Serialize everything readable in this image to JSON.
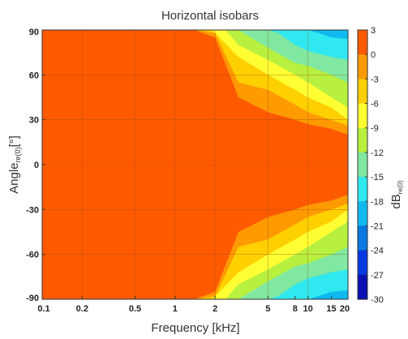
{
  "chart_data": {
    "type": "heatmap",
    "title": "Horizontal isobars",
    "xlabel": "Frequency [kHz]",
    "ylabel": {
      "main": "Angle",
      "sub": "re(0)",
      "unit": "[°]"
    },
    "colorbar_label": {
      "main": "dB",
      "sub": "re(0)"
    },
    "x_scale": "log",
    "xlim": [
      0.1,
      20
    ],
    "ylim": [
      -90,
      90
    ],
    "x_ticks": [
      0.1,
      0.2,
      0.5,
      1,
      2,
      5,
      8,
      10,
      15,
      20
    ],
    "x_tick_labels": [
      "0.1",
      "0.2",
      "0.5",
      "1",
      "2",
      "5",
      "8",
      "10",
      "15",
      "20"
    ],
    "y_ticks": [
      90,
      60,
      30,
      0,
      -30,
      -60,
      -90
    ],
    "y_tick_labels": [
      "90",
      "60",
      "30",
      "0",
      "-30",
      "-60",
      "-90"
    ],
    "colorbar_levels": [
      3,
      0,
      -3,
      -6,
      -9,
      -12,
      -15,
      -18,
      -21,
      -24,
      -27,
      -30
    ],
    "colorbar_tick_labels": [
      "3",
      "0",
      "-3",
      "-6",
      "-9",
      "-12",
      "-15",
      "-18",
      "-21",
      "-24",
      "-27",
      "-30"
    ],
    "colorbar_colors": [
      "#ff5a00",
      "#ff5a00",
      "#ff9a00",
      "#ffd000",
      "#ffff33",
      "#b8f040",
      "#80e8a0",
      "#30e8f0",
      "#10b8f0",
      "#0a78e0",
      "#0838e0",
      "#0a10b0"
    ],
    "grid": true,
    "grid_lines": {
      "x": [
        0.2,
        0.5,
        1,
        2,
        5,
        10
      ],
      "y": [
        60,
        30,
        0,
        -30,
        -60
      ]
    },
    "colors": {
      "dominant": "#ff5a00",
      "band_minus3": "#ff9a00",
      "band_minus6": "#ffd000",
      "band_minus9": "#ffff33",
      "band_minus12": "#b8f040",
      "band_minus15": "#80e8a0",
      "band_minus18": "#30e8f0",
      "band_minus21": "#10b8f0",
      "band_minus24": "#0a78e0",
      "grid": "#9a4a1a"
    },
    "contours_db": [
      {
        "level": -3,
        "angle": [
          [
            1.4,
            90
          ],
          [
            2,
            85
          ],
          [
            3,
            45
          ],
          [
            5,
            35
          ],
          [
            8,
            30
          ],
          [
            10,
            27
          ],
          [
            15,
            24
          ],
          [
            20,
            20
          ]
        ]
      },
      {
        "level": -6,
        "angle": [
          [
            1.45,
            90
          ],
          [
            2,
            88
          ],
          [
            3,
            55
          ],
          [
            5,
            50
          ],
          [
            8,
            40
          ],
          [
            10,
            35
          ],
          [
            15,
            30
          ],
          [
            20,
            26
          ]
        ]
      },
      {
        "level": -9,
        "angle": [
          [
            1.9,
            90
          ],
          [
            3,
            72
          ],
          [
            5,
            60
          ],
          [
            8,
            50
          ],
          [
            10,
            45
          ],
          [
            15,
            38
          ],
          [
            20,
            30
          ]
        ]
      },
      {
        "level": -12,
        "angle": [
          [
            2.4,
            90
          ],
          [
            3,
            80
          ],
          [
            5,
            70
          ],
          [
            8,
            60
          ],
          [
            10,
            55
          ],
          [
            15,
            45
          ],
          [
            20,
            38
          ]
        ]
      },
      {
        "level": -15,
        "angle": [
          [
            3,
            90
          ],
          [
            5,
            78
          ],
          [
            8,
            68
          ],
          [
            10,
            66
          ],
          [
            15,
            60
          ],
          [
            20,
            55
          ]
        ]
      },
      {
        "level": -18,
        "angle": [
          [
            5,
            90
          ],
          [
            6,
            88
          ],
          [
            8,
            80
          ],
          [
            10,
            76
          ],
          [
            15,
            72
          ],
          [
            20,
            70
          ]
        ]
      },
      {
        "level": -21,
        "angle": [
          [
            10,
            90
          ],
          [
            12,
            88
          ],
          [
            15,
            85
          ],
          [
            20,
            84
          ]
        ]
      }
    ]
  }
}
